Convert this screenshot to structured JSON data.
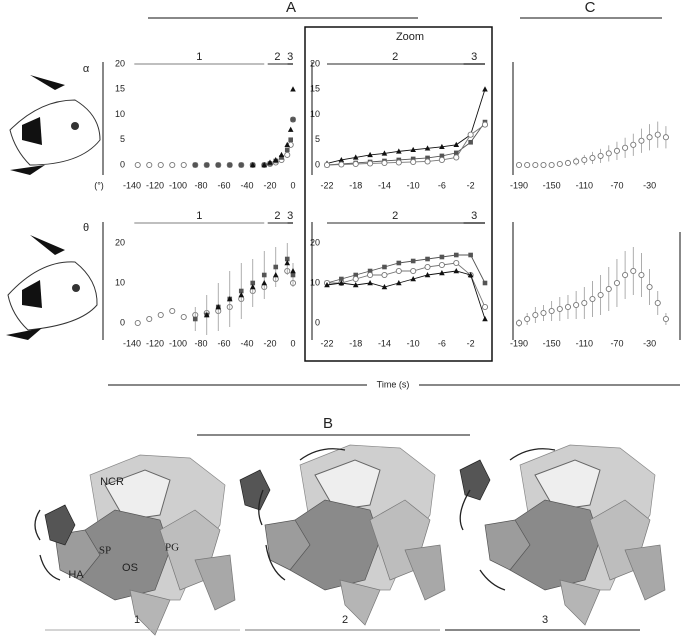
{
  "labels": {
    "A": "A",
    "B": "B",
    "C": "C",
    "zoom": "Zoom",
    "time": "Time (s)"
  },
  "diagram": {
    "parts": [
      "NCR",
      "PG",
      "SP",
      "OS",
      "HA"
    ],
    "stages": [
      "1",
      "2",
      "3"
    ]
  },
  "chart_data": [
    {
      "type": "line",
      "ylabel": "α",
      "yunit": "(°)",
      "xlim": [
        -140,
        0
      ],
      "ylim": [
        0,
        20
      ],
      "xticks": [
        -140,
        -120,
        -100,
        -80,
        -60,
        -40,
        -20,
        0
      ],
      "yticks": [
        0,
        5,
        10,
        15,
        20
      ],
      "phases": [
        {
          "label": "1",
          "range": [
            -138,
            -25
          ],
          "color": "#999"
        },
        {
          "label": "2",
          "range": [
            -22,
            -5
          ],
          "color": "#555"
        },
        {
          "label": "3",
          "range": [
            -5,
            0
          ],
          "color": "#111"
        }
      ],
      "x": [
        -135,
        -125,
        -115,
        -105,
        -95,
        -85,
        -75,
        -65,
        -55,
        -45,
        -35,
        -25,
        -20,
        -15,
        -10,
        -5,
        -2,
        0
      ],
      "series": [
        {
          "marker": "circle",
          "color": "#777",
          "values": [
            0,
            0,
            0,
            0,
            0,
            0,
            0,
            0,
            0,
            0,
            0,
            0,
            0.2,
            0.5,
            1,
            2,
            4,
            9
          ]
        },
        {
          "marker": "square",
          "color": "#555",
          "values": [
            null,
            null,
            null,
            null,
            null,
            0,
            0,
            0,
            0,
            0,
            0,
            0,
            0.3,
            0.8,
            1.5,
            3,
            5,
            9
          ]
        },
        {
          "marker": "triangle",
          "color": "#111",
          "values": [
            null,
            null,
            null,
            null,
            null,
            null,
            null,
            null,
            null,
            null,
            0,
            0,
            0.5,
            1,
            2,
            4,
            7,
            15
          ]
        }
      ]
    },
    {
      "type": "line",
      "lines": true,
      "xlim": [
        -22,
        0
      ],
      "ylim": [
        0,
        20
      ],
      "xticks": [
        -22,
        -18,
        -14,
        -10,
        -6,
        -2
      ],
      "yticks": [
        0,
        5,
        10,
        15,
        20
      ],
      "phases": [
        {
          "label": "2",
          "range": [
            -22,
            -3
          ],
          "color": "#555"
        },
        {
          "label": "3",
          "range": [
            -3,
            0
          ],
          "color": "#111"
        }
      ],
      "x": [
        -22,
        -20,
        -18,
        -16,
        -14,
        -12,
        -10,
        -8,
        -6,
        -4,
        -2,
        0
      ],
      "series": [
        {
          "marker": "triangle",
          "color": "#111",
          "values": [
            0.3,
            1,
            1.5,
            2,
            2.3,
            2.7,
            3,
            3.3,
            3.6,
            4,
            6,
            15
          ]
        },
        {
          "marker": "square",
          "color": "#555",
          "values": [
            0,
            0.2,
            0.4,
            0.6,
            0.8,
            1,
            1.2,
            1.4,
            1.8,
            2.4,
            4.5,
            8.5
          ]
        },
        {
          "marker": "circle",
          "color": "#777",
          "values": [
            0,
            0.1,
            0.2,
            0.3,
            0.4,
            0.5,
            0.6,
            0.7,
            1,
            1.5,
            6,
            8
          ]
        }
      ]
    },
    {
      "type": "line",
      "xlim": [
        -190,
        -5
      ],
      "ylim": [
        0,
        20
      ],
      "xticks": [
        -190,
        -150,
        -110,
        -70,
        -30
      ],
      "x": [
        -190,
        -180,
        -170,
        -160,
        -150,
        -140,
        -130,
        -120,
        -110,
        -100,
        -90,
        -80,
        -70,
        -60,
        -50,
        -40,
        -30,
        -20,
        -10
      ],
      "series": [
        {
          "marker": "circle",
          "color": "#777",
          "values": [
            0,
            0,
            0,
            0,
            0,
            0.2,
            0.4,
            0.7,
            1,
            1.4,
            1.8,
            2.3,
            2.8,
            3.4,
            4,
            4.8,
            5.5,
            6,
            5.5
          ],
          "errors": [
            0,
            0,
            0,
            0,
            0.2,
            0.4,
            0.6,
            0.8,
            1,
            1.2,
            1.4,
            1.6,
            1.8,
            2,
            2.2,
            2.4,
            2.6,
            2.6,
            2.2
          ]
        }
      ]
    },
    {
      "type": "line",
      "ylabel": "θ",
      "xlim": [
        -140,
        0
      ],
      "ylim": [
        0,
        25
      ],
      "xticks": [
        -140,
        -120,
        -100,
        -80,
        -60,
        -40,
        -20,
        0
      ],
      "yticks": [
        0,
        10,
        20
      ],
      "phases": [
        {
          "label": "1",
          "range": [
            -138,
            -25
          ],
          "color": "#999"
        },
        {
          "label": "2",
          "range": [
            -22,
            -5
          ],
          "color": "#555"
        },
        {
          "label": "3",
          "range": [
            -5,
            0
          ],
          "color": "#111"
        }
      ],
      "x": [
        -135,
        -125,
        -115,
        -105,
        -95,
        -85,
        -75,
        -65,
        -55,
        -45,
        -35,
        -25,
        -15,
        -5,
        0
      ],
      "series": [
        {
          "marker": "circle",
          "color": "#777",
          "values": [
            0,
            1,
            2,
            3,
            1.5,
            2,
            2.5,
            3,
            4,
            6,
            8,
            9,
            11,
            13,
            10
          ]
        },
        {
          "marker": "square",
          "color": "#555",
          "values": [
            null,
            null,
            null,
            null,
            null,
            1,
            2,
            4,
            6,
            8,
            10,
            12,
            14,
            16,
            12
          ],
          "errors": [
            null,
            null,
            null,
            null,
            null,
            3,
            5,
            6,
            7,
            7,
            6,
            6,
            5,
            4,
            3
          ]
        },
        {
          "marker": "triangle",
          "color": "#111",
          "values": [
            null,
            null,
            null,
            null,
            null,
            null,
            2,
            4,
            6,
            7,
            9,
            10,
            12,
            15,
            13
          ]
        }
      ]
    },
    {
      "type": "line",
      "lines": true,
      "xlim": [
        -22,
        0
      ],
      "ylim": [
        0,
        25
      ],
      "xticks": [
        -22,
        -18,
        -14,
        -10,
        -6,
        -2
      ],
      "yticks": [
        0,
        10,
        20
      ],
      "phases": [
        {
          "label": "2",
          "range": [
            -22,
            -3
          ],
          "color": "#555"
        },
        {
          "label": "3",
          "range": [
            -3,
            0
          ],
          "color": "#111"
        }
      ],
      "x": [
        -22,
        -20,
        -18,
        -16,
        -14,
        -12,
        -10,
        -8,
        -6,
        -4,
        -2,
        0
      ],
      "series": [
        {
          "marker": "square",
          "color": "#555",
          "values": [
            10,
            11,
            12,
            13,
            14,
            15,
            15.5,
            16,
            16.5,
            17,
            17,
            10
          ]
        },
        {
          "marker": "circle",
          "color": "#777",
          "values": [
            10,
            10,
            11,
            12,
            12,
            13,
            13,
            14,
            14.5,
            15,
            12,
            4
          ]
        },
        {
          "marker": "triangle",
          "color": "#111",
          "values": [
            9.5,
            10,
            9.5,
            10,
            9,
            10,
            11,
            12,
            12.5,
            13,
            12,
            1
          ]
        }
      ]
    },
    {
      "type": "line",
      "xlim": [
        -190,
        -5
      ],
      "ylim": [
        0,
        25
      ],
      "xticks": [
        -190,
        -150,
        -110,
        -70,
        -30
      ],
      "x": [
        -190,
        -180,
        -170,
        -160,
        -150,
        -140,
        -130,
        -120,
        -110,
        -100,
        -90,
        -80,
        -70,
        -60,
        -50,
        -40,
        -30,
        -20,
        -10
      ],
      "series": [
        {
          "marker": "circle",
          "color": "#777",
          "values": [
            0,
            1,
            2,
            2.5,
            3,
            3.5,
            4,
            4.5,
            5,
            6,
            7,
            8.5,
            10,
            12,
            13,
            12,
            9,
            5,
            1
          ],
          "errors": [
            1,
            1.5,
            2,
            2,
            2.5,
            3,
            3,
            3.5,
            4,
            4.5,
            5,
            5.5,
            6,
            6,
            6,
            5.5,
            4.5,
            3,
            1.5
          ]
        }
      ]
    }
  ]
}
